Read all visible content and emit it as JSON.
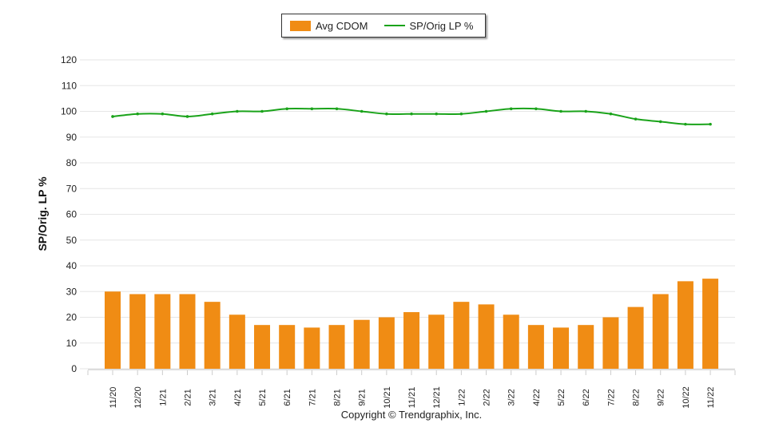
{
  "chart_data": {
    "type": "bar+line",
    "ylabel": "SP/Orig. LP %",
    "ylim": [
      0,
      120
    ],
    "yticks": [
      0,
      10,
      20,
      30,
      40,
      50,
      60,
      70,
      80,
      90,
      100,
      110,
      120
    ],
    "grid": true,
    "legend_position": "top",
    "categories": [
      "11/20",
      "12/20",
      "1/21",
      "2/21",
      "3/21",
      "4/21",
      "5/21",
      "6/21",
      "7/21",
      "8/21",
      "9/21",
      "10/21",
      "11/21",
      "12/21",
      "1/22",
      "2/22",
      "3/22",
      "4/22",
      "5/22",
      "6/22",
      "7/22",
      "8/22",
      "9/22",
      "10/22",
      "11/22"
    ],
    "series": [
      {
        "name": "Avg CDOM",
        "type": "bar",
        "color": "#f08c14",
        "values": [
          30,
          29,
          29,
          29,
          26,
          21,
          17,
          17,
          16,
          17,
          19,
          20,
          22,
          21,
          26,
          25,
          21,
          17,
          16,
          17,
          20,
          24,
          29,
          34,
          35
        ]
      },
      {
        "name": "SP/Orig LP %",
        "type": "line",
        "color": "#1aa31a",
        "values": [
          98,
          99,
          99,
          98,
          99,
          100,
          100,
          101,
          101,
          101,
          100,
          99,
          99,
          99,
          99,
          100,
          101,
          101,
          100,
          100,
          99,
          97,
          96,
          95,
          95
        ]
      }
    ]
  },
  "copyright": "Copyright © Trendgraphix, Inc."
}
